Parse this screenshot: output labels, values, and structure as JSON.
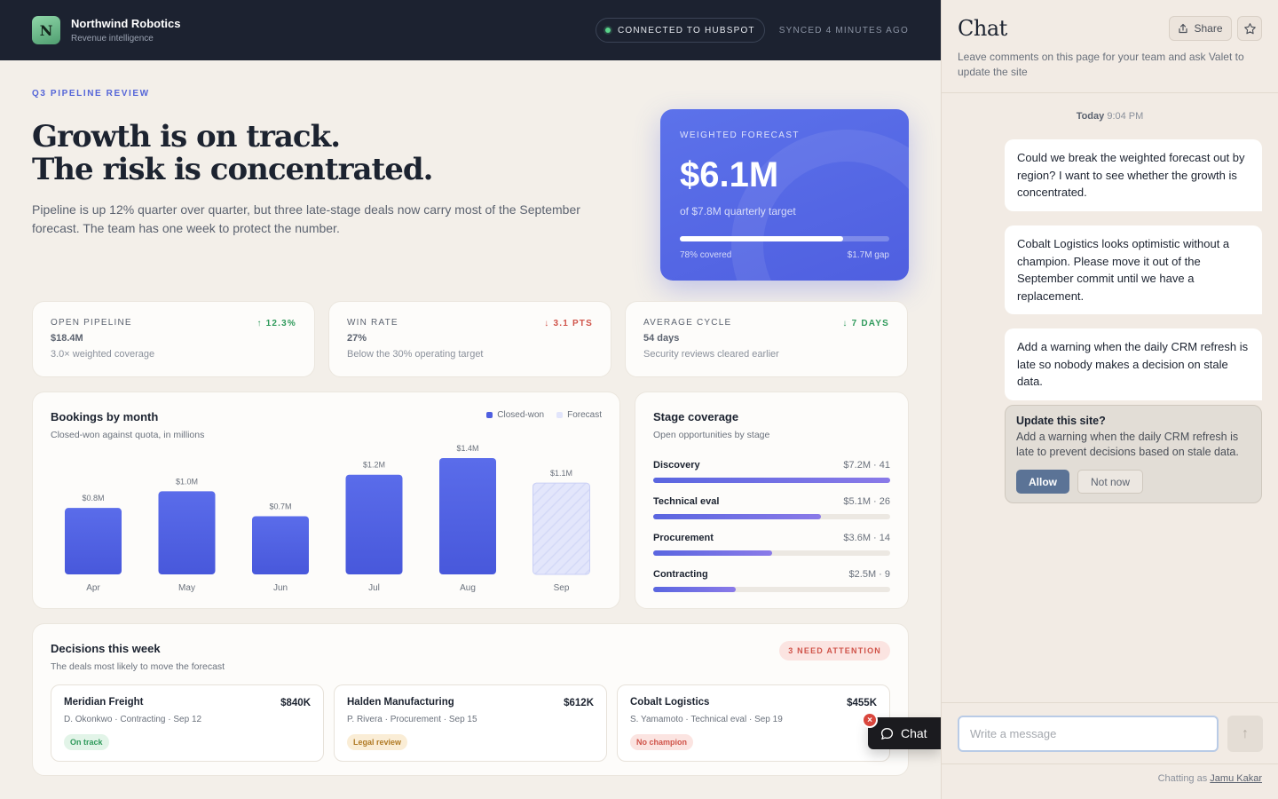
{
  "topbar": {
    "logo_letter": "N",
    "company": "Northwind Robotics",
    "subtitle": "Revenue intelligence",
    "connection": "CONNECTED TO HUBSPOT",
    "synced": "SYNCED 4 MINUTES AGO"
  },
  "hero": {
    "eyebrow": "Q3 PIPELINE REVIEW",
    "headline_line1": "Growth is on track.",
    "headline_line2": "The risk is concentrated.",
    "intro": "Pipeline is up 12% quarter over quarter, but three late-stage deals now carry most of the September forecast. The team has one week to protect the number."
  },
  "forecast": {
    "label": "WEIGHTED FORECAST",
    "value": "$6.1M",
    "sub": "of $7.8M quarterly target",
    "progress": 0.78,
    "covered": "78% covered",
    "gap": "$1.7M gap"
  },
  "kpis": [
    {
      "label": "OPEN PIPELINE",
      "delta": "↑ 12.3%",
      "delta_color": "#2f9a5b",
      "value": "$18.4M",
      "note": "3.0× weighted coverage"
    },
    {
      "label": "WIN RATE",
      "delta": "↓ 3.1 PTS",
      "delta_color": "#d0544a",
      "value": "27%",
      "note": "Below the 30% operating target"
    },
    {
      "label": "AVERAGE CYCLE",
      "delta": "↓ 7 DAYS",
      "delta_color": "#2f9a5b",
      "value": "54 days",
      "note": "Security reviews cleared earlier"
    }
  ],
  "bookings": {
    "title": "Bookings by month",
    "subtitle": "Closed-won against quota, in millions",
    "legend_closed": "Closed-won",
    "legend_forecast": "Forecast",
    "colors": {
      "closed": "#4f5fe0",
      "forecast": "#e2e5fb"
    }
  },
  "chart_data": {
    "type": "bar",
    "categories": [
      "Apr",
      "May",
      "Jun",
      "Jul",
      "Aug",
      "Sep"
    ],
    "values": [
      0.8,
      1.0,
      0.7,
      1.2,
      1.4,
      1.1
    ],
    "value_labels": [
      "$0.8M",
      "$1.0M",
      "$0.7M",
      "$1.2M",
      "$1.4M",
      "$1.1M"
    ],
    "kind": [
      "closed",
      "closed",
      "closed",
      "closed",
      "closed",
      "forecast"
    ],
    "title": "Bookings by month",
    "subtitle": "Closed-won against quota, in millions",
    "ylim": [
      0,
      1.4
    ],
    "legend": [
      "Closed-won",
      "Forecast"
    ],
    "legend_position": "top-right",
    "grid": false
  },
  "stages": {
    "title": "Stage coverage",
    "subtitle": "Open opportunities by stage",
    "items": [
      {
        "name": "Discovery",
        "meta": "$7.2M · 41",
        "value": 7.2
      },
      {
        "name": "Technical eval",
        "meta": "$5.1M · 26",
        "value": 5.1
      },
      {
        "name": "Procurement",
        "meta": "$3.6M · 14",
        "value": 3.6
      },
      {
        "name": "Contracting",
        "meta": "$2.5M · 9",
        "value": 2.5
      }
    ]
  },
  "decisions": {
    "title": "Decisions this week",
    "subtitle": "The deals most likely to move the forecast",
    "badge": "3 NEED ATTENTION",
    "deals": [
      {
        "name": "Meridian Freight",
        "amount": "$840K",
        "meta": "D. Okonkwo · Contracting · Sep 12",
        "status": "On track",
        "status_bg": "#e2f4e8",
        "status_fg": "#2f9a5b"
      },
      {
        "name": "Halden Manufacturing",
        "amount": "$612K",
        "meta": "P. Rivera · Procurement · Sep 15",
        "status": "Legal review",
        "status_bg": "#faedd6",
        "status_fg": "#b07a25"
      },
      {
        "name": "Cobalt Logistics",
        "amount": "$455K",
        "meta": "S. Yamamoto · Technical eval · Sep 19",
        "status": "No champion",
        "status_bg": "#fbe4e1",
        "status_fg": "#d0544a"
      }
    ]
  },
  "fab": {
    "label": "Chat",
    "close": "×"
  },
  "chat": {
    "title": "Chat",
    "share": "Share",
    "description": "Leave comments on this page for your team and ask Valet to update the site",
    "time_day": "Today",
    "time": "9:04 PM",
    "messages": [
      "Could we break the weighted forecast out by region? I want to see whether the growth is concentrated.",
      "Cobalt Logistics looks optimistic without a champion. Please move it out of the September commit until we have a replacement.",
      "Add a warning when the daily CRM refresh is late so nobody makes a decision on stale data."
    ],
    "update_title": "Update this site?",
    "update_text": "Add a warning when the daily CRM refresh is late to prevent decisions based on stale data.",
    "allow": "Allow",
    "not_now": "Not now",
    "input_placeholder": "Write a message",
    "input_value": "",
    "send_icon": "↑",
    "chatting_as_prefix": "Chatting as",
    "user": "Jamu Kakar"
  }
}
